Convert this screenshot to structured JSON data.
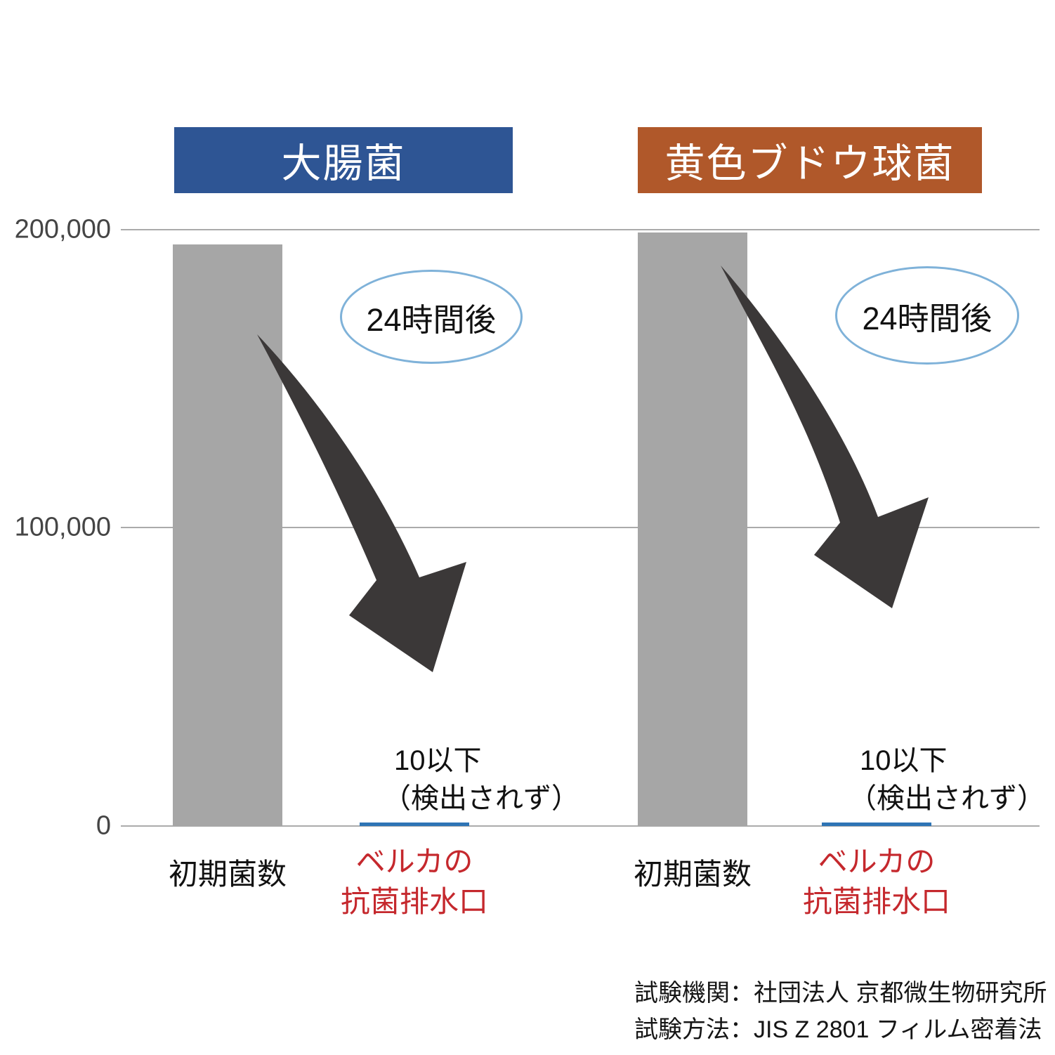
{
  "axis": {
    "y_ticks": [
      "200,000",
      "100,000",
      "0"
    ],
    "ylim": [
      0,
      200000
    ],
    "grid": true
  },
  "chart_data": [
    {
      "type": "bar",
      "title": "大腸菌",
      "categories": [
        "初期菌数",
        "ベルカの抗菌排水口"
      ],
      "values": [
        195000,
        10
      ],
      "ylim": [
        0,
        200000
      ],
      "bar_colors": [
        "#A6A6A6",
        "#2E74B5"
      ],
      "annotation": "24時間後",
      "result_note": "10以下（検出されず）",
      "header_bg": "#2E5594"
    },
    {
      "type": "bar",
      "title": "黄色ブドウ球菌",
      "categories": [
        "初期菌数",
        "ベルカの抗菌排水口"
      ],
      "values": [
        199000,
        10
      ],
      "ylim": [
        0,
        200000
      ],
      "bar_colors": [
        "#A6A6A6",
        "#2E74B5"
      ],
      "annotation": "24時間後",
      "result_note": "10以下（検出されず）",
      "header_bg": "#B0582A"
    }
  ],
  "labels": {
    "after_24h": "24時間後",
    "result_line1": "10以下",
    "result_line2": "（検出されず）",
    "x_initial": "初期菌数",
    "x_product_line1": "ベルカの",
    "x_product_line2": "抗菌排水口"
  },
  "footer": {
    "line1": "試験機関：社団法人 京都微生物研究所",
    "line2": "試験方法：JIS Z 2801 フィルム密着法"
  },
  "colors": {
    "header_ecoli": "#2E5594",
    "header_staph": "#B0582A",
    "bar_initial": "#A6A6A6",
    "bar_product": "#2E74B5",
    "product_label_red": "#C5282D",
    "arrow": "#3B3838",
    "ellipse_stroke": "#7FB2D9",
    "gridline": "#ABABAB",
    "text": "#111111"
  }
}
